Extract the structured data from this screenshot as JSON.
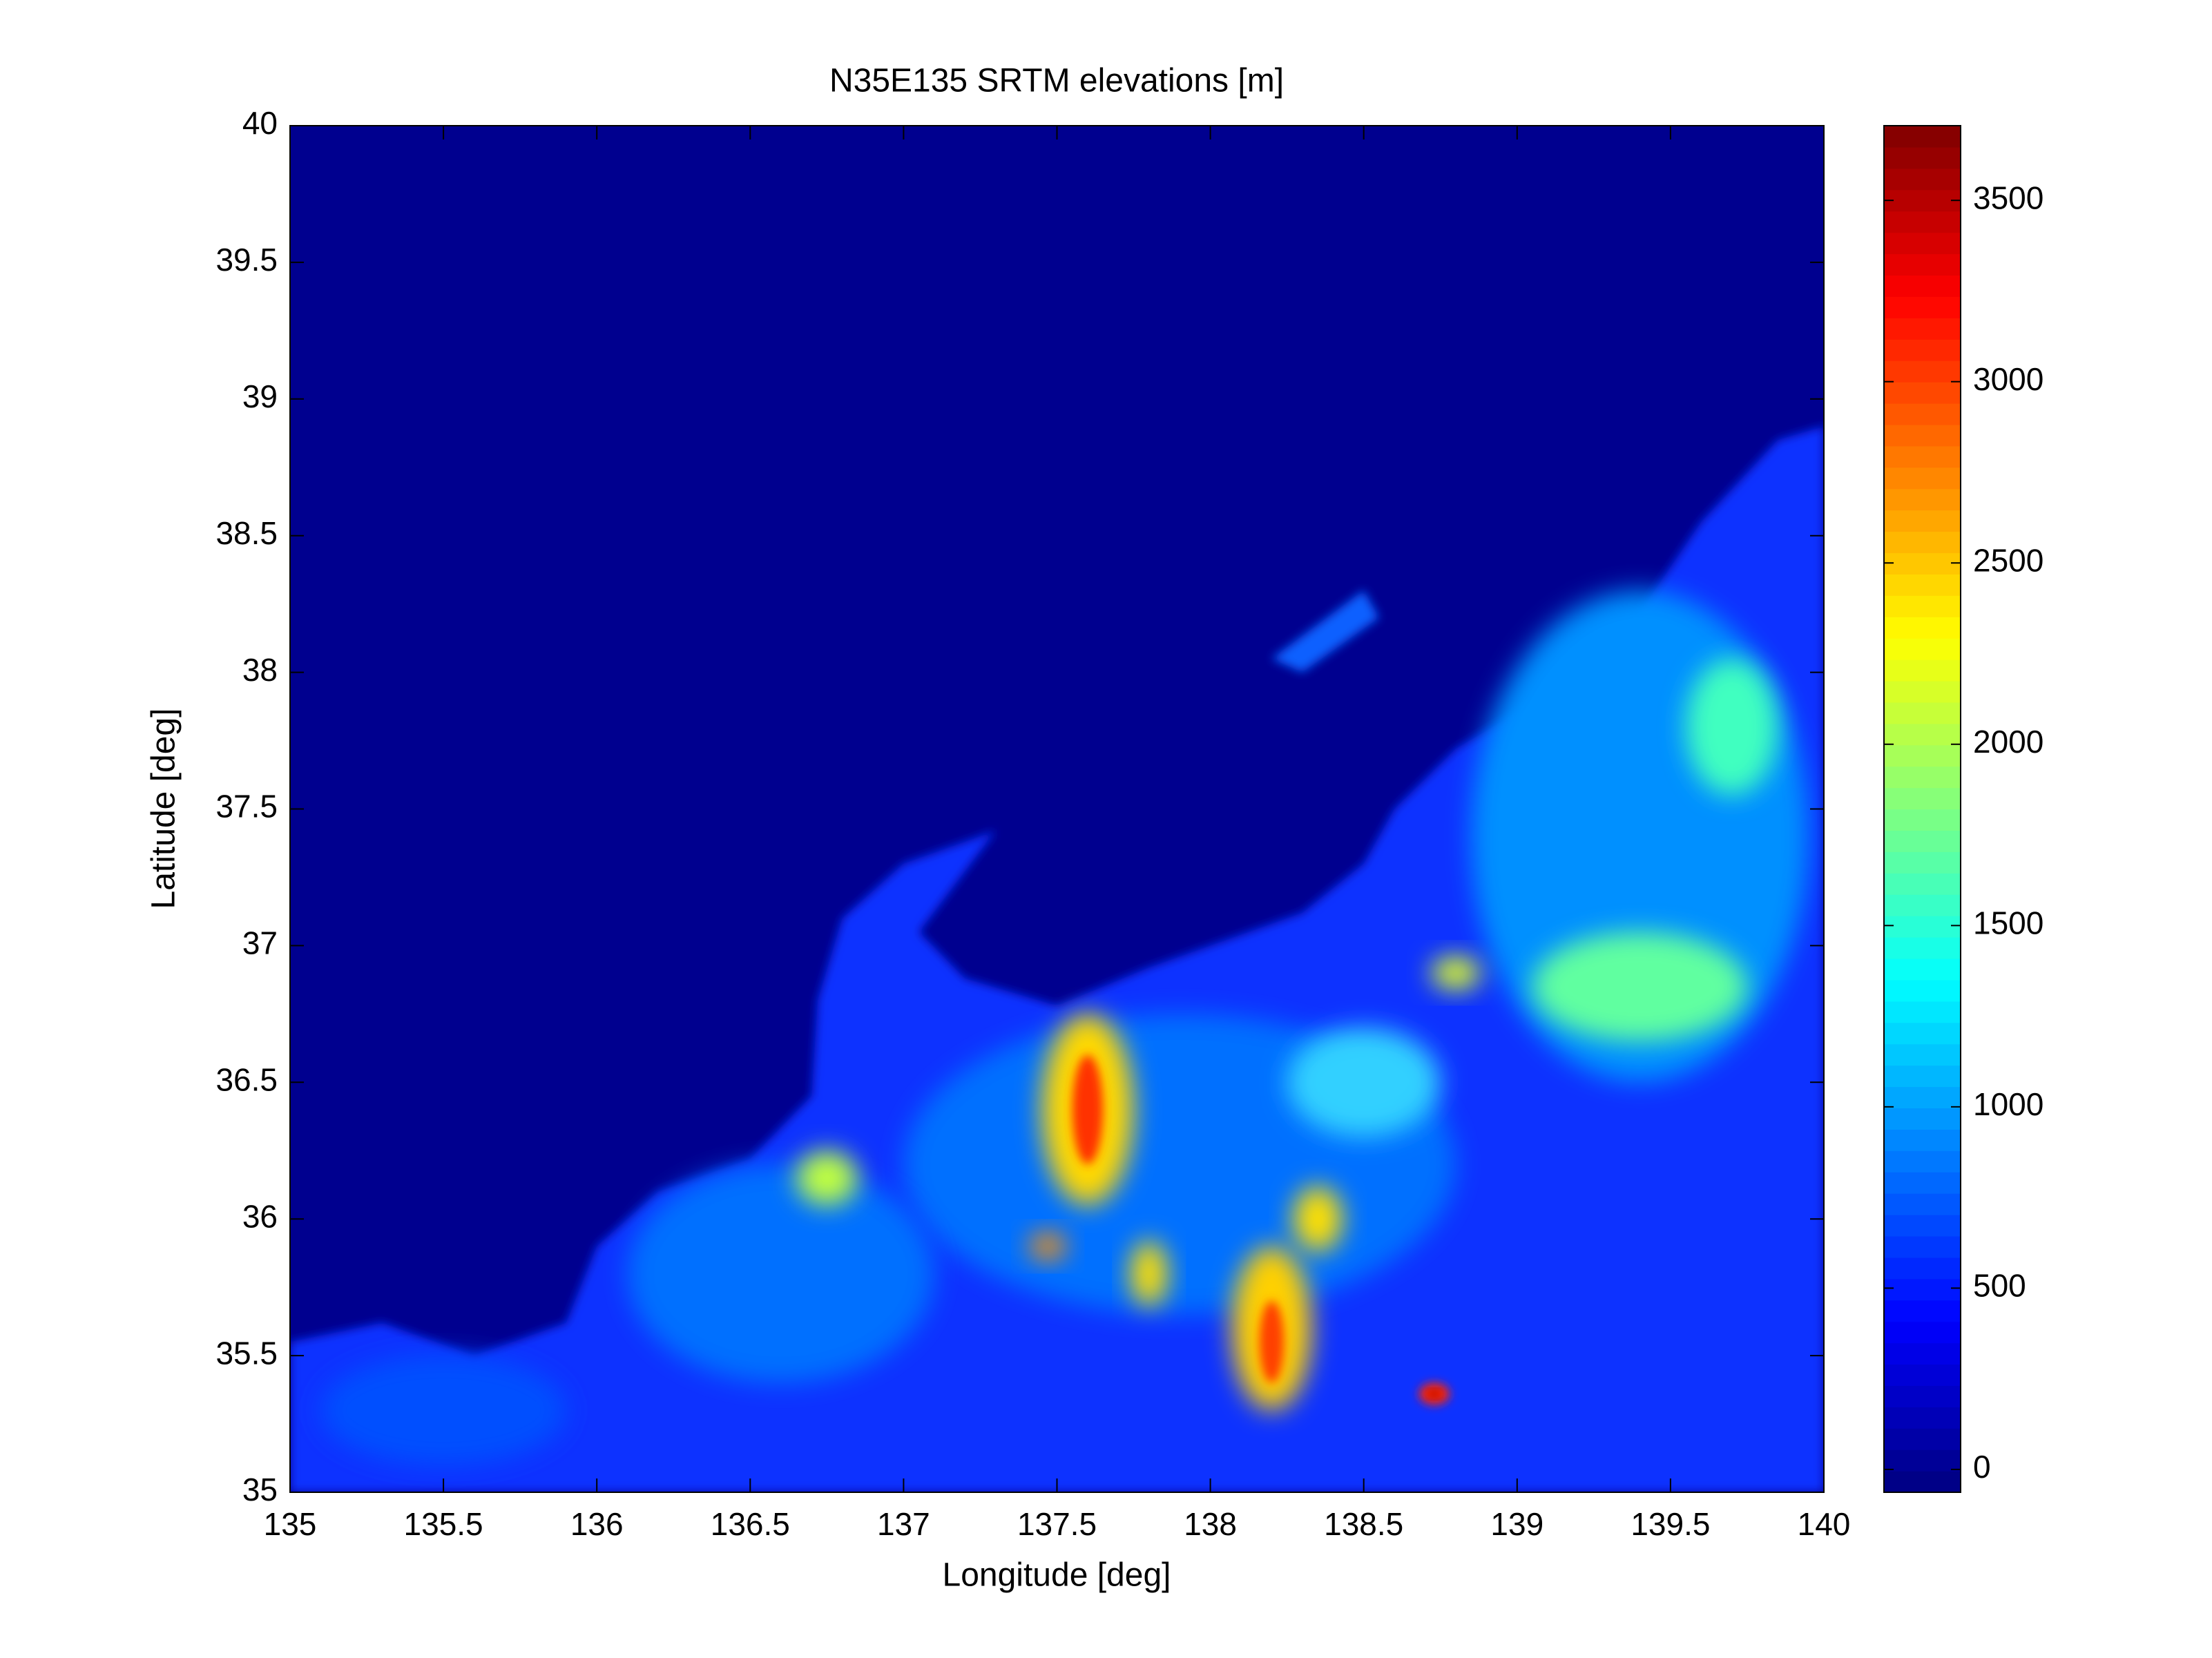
{
  "chart_data": {
    "type": "heatmap",
    "title": "N35E135 SRTM elevations [m]",
    "x_label": "Longitude [deg]",
    "y_label": "Latitude [deg]",
    "xlim": [
      135,
      140
    ],
    "ylim": [
      35,
      40
    ],
    "xticks": [
      135,
      135.5,
      136,
      136.5,
      137,
      137.5,
      138,
      138.5,
      139,
      139.5,
      140
    ],
    "yticks": [
      35,
      35.5,
      36,
      36.5,
      37,
      37.5,
      38,
      38.5,
      39,
      39.5,
      40
    ],
    "colormap": "jet",
    "colorbar": {
      "lim": [
        -63,
        3706
      ],
      "ticks": [
        0,
        500,
        1000,
        1500,
        2000,
        2500,
        3000,
        3500
      ]
    }
  }
}
